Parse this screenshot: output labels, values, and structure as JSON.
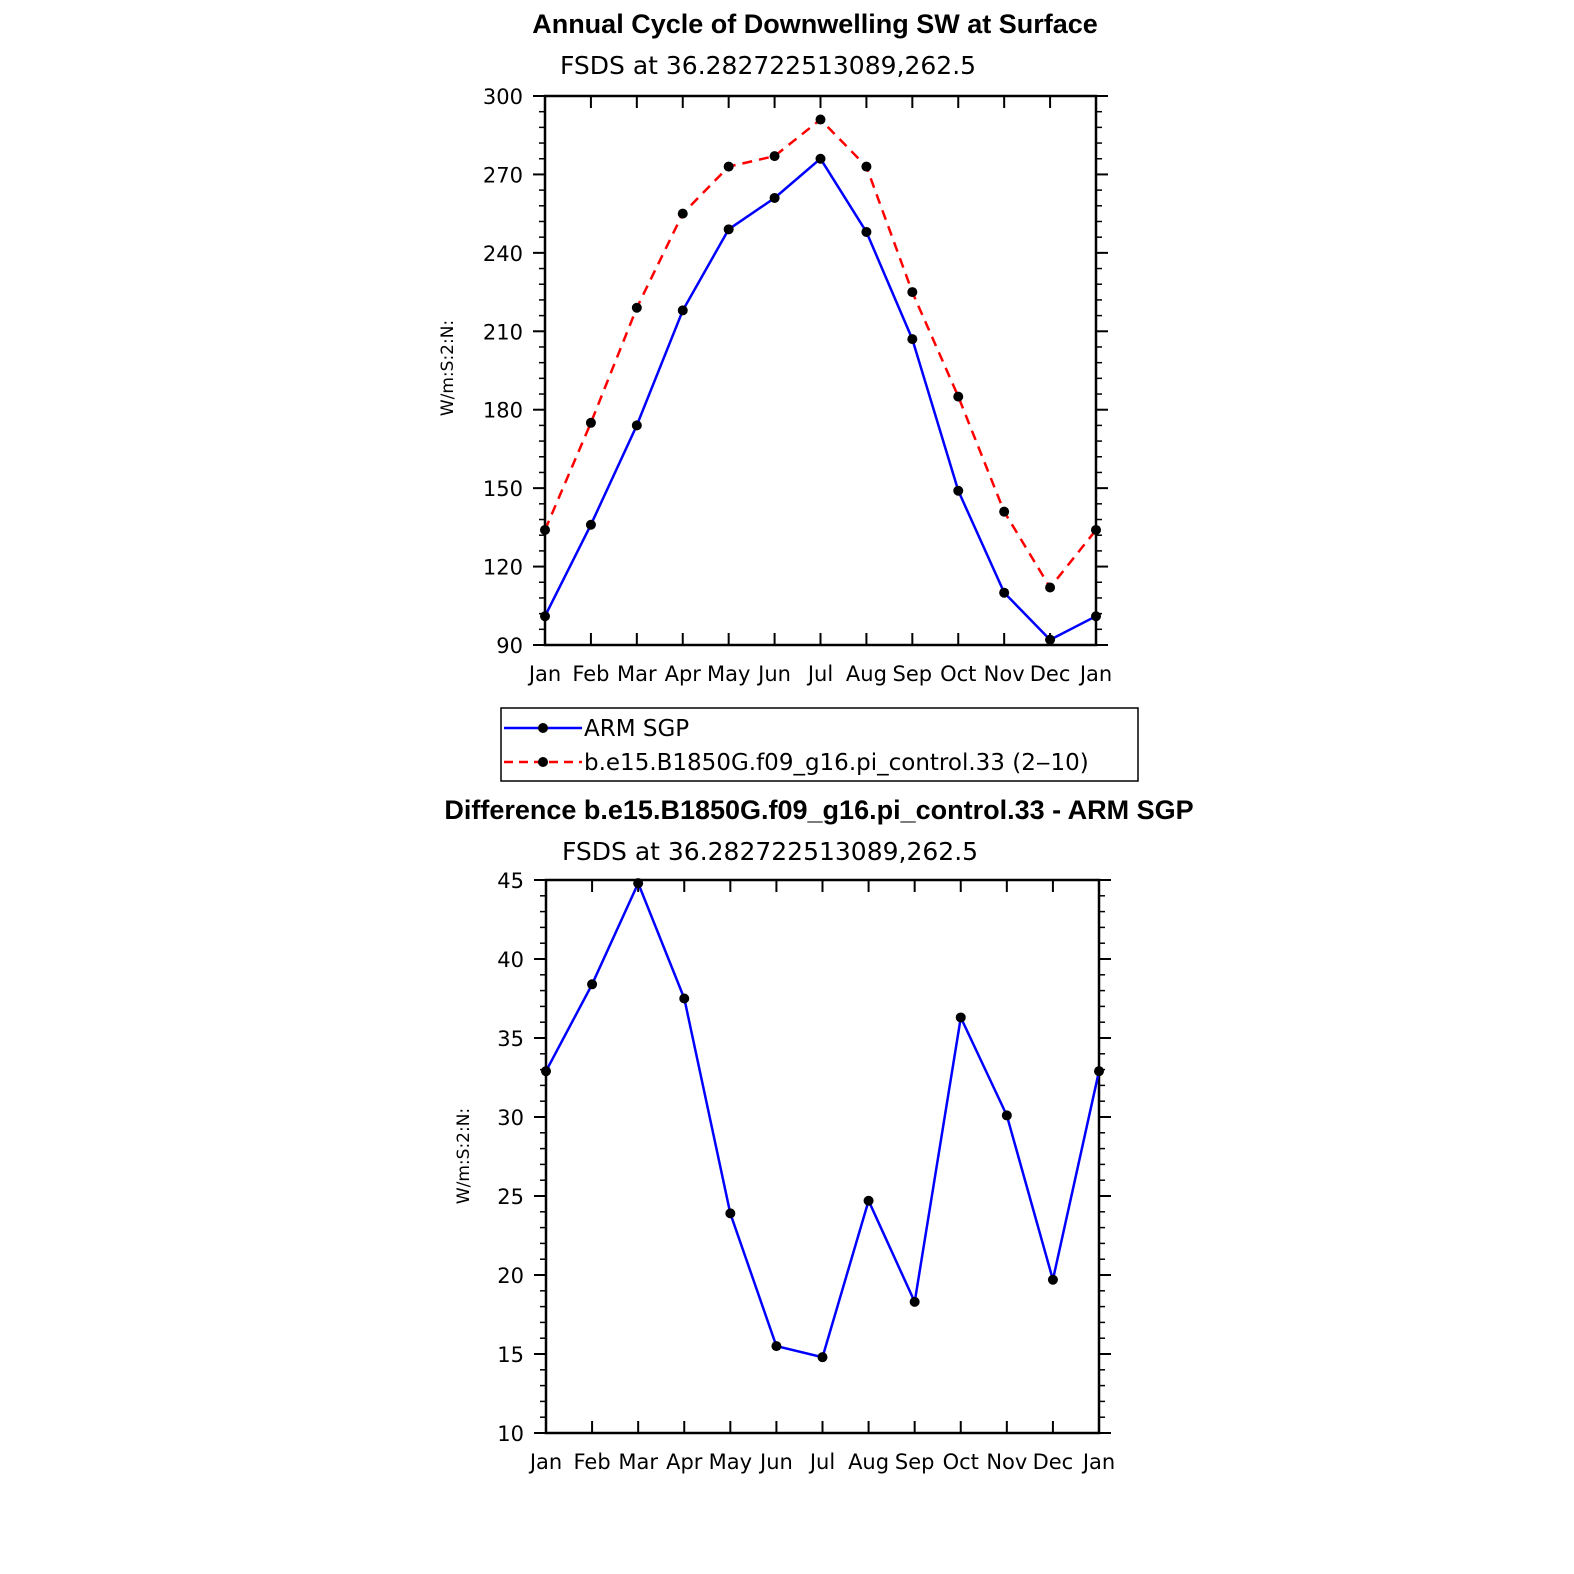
{
  "chart_data": [
    {
      "type": "line",
      "title": "Annual Cycle of Downwelling SW at Surface",
      "subtitle": "FSDS at 36.282722513089,262.5",
      "ylabel": "W/m:S:2:N:",
      "xlabel": "",
      "categories": [
        "Jan",
        "Feb",
        "Mar",
        "Apr",
        "May",
        "Jun",
        "Jul",
        "Aug",
        "Sep",
        "Oct",
        "Nov",
        "Dec",
        "Jan"
      ],
      "ylim": [
        90,
        300
      ],
      "yticks": [
        90,
        120,
        150,
        180,
        210,
        240,
        270,
        300
      ],
      "series": [
        {
          "name": "ARM SGP",
          "color": "#0000ff",
          "dash": "solid",
          "values": [
            101,
            136,
            174,
            218,
            249,
            261,
            276,
            248,
            207,
            149,
            110,
            92,
            101
          ]
        },
        {
          "name": "b.e15.B1850G.f09_g16.pi_control.33 (2‒10)",
          "color": "#ff0000",
          "dash": "dashed",
          "values": [
            134,
            175,
            219,
            255,
            273,
            277,
            291,
            273,
            225,
            185,
            141,
            112,
            134
          ]
        }
      ],
      "legend": "below"
    },
    {
      "type": "line",
      "title": "Difference b.e15.B1850G.f09_g16.pi_control.33 - ARM SGP",
      "subtitle": "FSDS at 36.282722513089,262.5",
      "ylabel": "W/m:S:2:N:",
      "xlabel": "",
      "categories": [
        "Jan",
        "Feb",
        "Mar",
        "Apr",
        "May",
        "Jun",
        "Jul",
        "Aug",
        "Sep",
        "Oct",
        "Nov",
        "Dec",
        "Jan"
      ],
      "ylim": [
        10,
        45
      ],
      "yticks": [
        10,
        15,
        20,
        25,
        30,
        35,
        40,
        45
      ],
      "series": [
        {
          "color": "#0000ff",
          "dash": "solid",
          "values": [
            32.9,
            38.4,
            44.8,
            37.5,
            23.9,
            15.5,
            14.8,
            24.7,
            18.3,
            36.3,
            30.1,
            19.7,
            32.9
          ]
        }
      ]
    }
  ]
}
